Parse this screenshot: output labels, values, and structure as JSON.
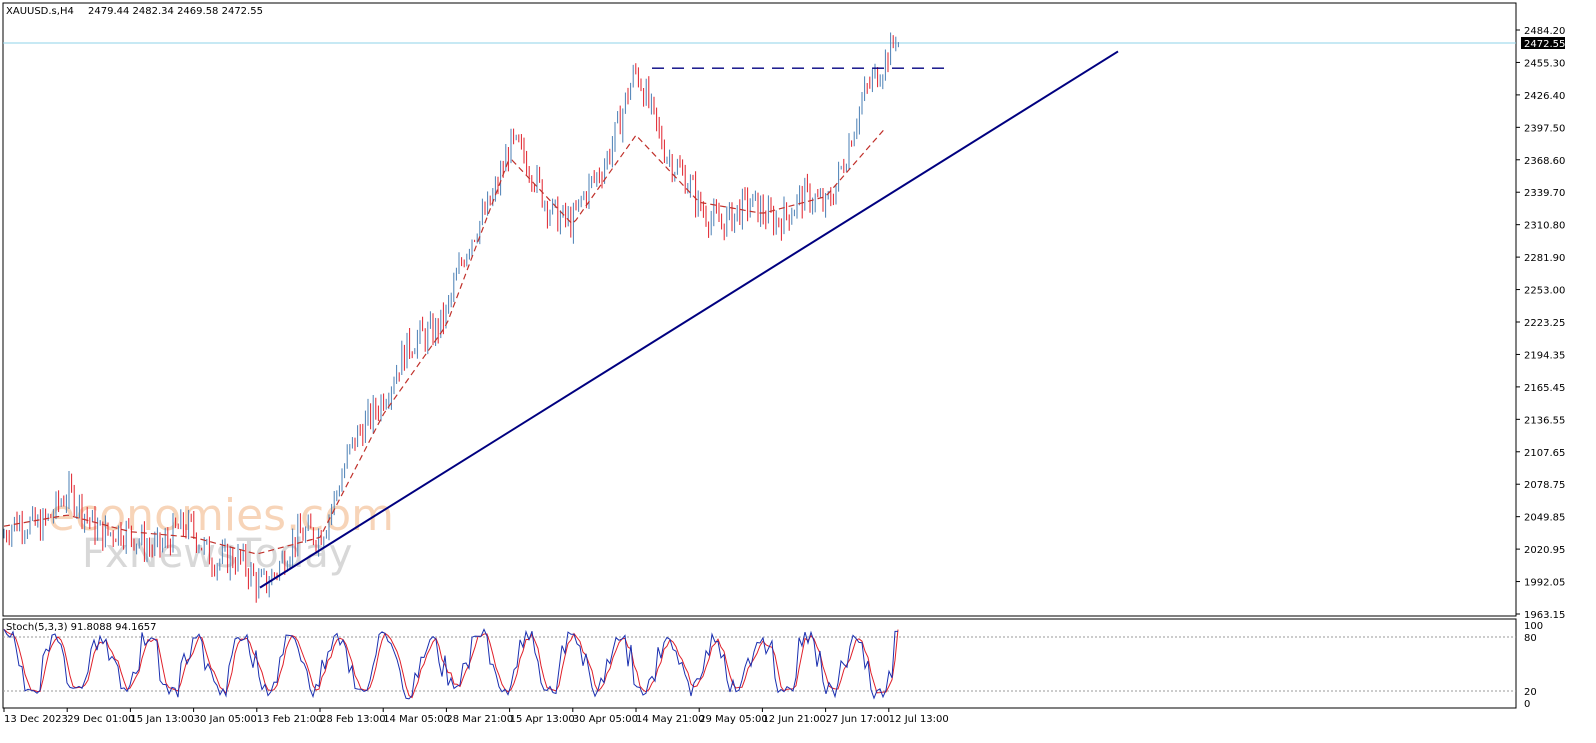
{
  "header": {
    "symbol": "XAUUSD.s,H4",
    "ohlc": "2479.44 2482.34 2469.58 2472.55"
  },
  "price_axis": {
    "ticks": [
      "2484.20",
      "2455.30",
      "2426.40",
      "2397.50",
      "2368.60",
      "2339.70",
      "2310.80",
      "2281.90",
      "2253.00",
      "2223.25",
      "2194.35",
      "2165.45",
      "2136.55",
      "2107.65",
      "2078.75",
      "2049.85",
      "2020.95",
      "1992.05",
      "1963.15"
    ],
    "current_price_label": "2472.55"
  },
  "osc": {
    "label": "Stoch(5,3,3) 91.8088 94.1657",
    "ticks": [
      "100",
      "80",
      "20",
      "0"
    ]
  },
  "time_axis": {
    "ticks": [
      "13 Dec 2023",
      "29 Dec 01:00",
      "15 Jan 13:00",
      "30 Jan 05:00",
      "13 Feb 21:00",
      "28 Feb 13:00",
      "14 Mar 05:00",
      "28 Mar 21:00",
      "15 Apr 13:00",
      "30 Apr 05:00",
      "14 May 21:00",
      "29 May 05:00",
      "12 Jun 21:00",
      "27 Jun 17:00",
      "12 Jul 13:00"
    ]
  },
  "watermark": {
    "line1": "economies.com",
    "line2": "FxNewsToday"
  },
  "colors": {
    "bull": "#4a7fb5",
    "bear": "#e0202a",
    "ma": "#c0302a",
    "trend": "#000080",
    "price_line": "#8fd3e8",
    "stoch_main": "#1a2fb0",
    "stoch_signal": "#e0202a"
  },
  "chart_data": {
    "type": "line",
    "title": "XAUUSD.s,H4",
    "x": [
      "13 Dec 2023",
      "29 Dec 01:00",
      "15 Jan 13:00",
      "30 Jan 05:00",
      "13 Feb 21:00",
      "28 Feb 13:00",
      "14 Mar 05:00",
      "28 Mar 21:00",
      "15 Apr 13:00",
      "30 Apr 05:00",
      "14 May 21:00",
      "29 May 05:00",
      "12 Jun 21:00",
      "27 Jun 17:00",
      "12 Jul 13:00"
    ],
    "series": [
      {
        "values": [
          2030,
          2062,
          2025,
          2032,
          1990,
          2040,
          2165,
          2235,
          2380,
          2305,
          2440,
          2320,
          2320,
          2330,
          2472.55
        ]
      },
      {
        "values": [
          2040,
          2050,
          2035,
          2030,
          2015,
          2030,
          2140,
          2220,
          2370,
          2310,
          2390,
          2330,
          2320,
          2335,
          2400
        ]
      }
    ],
    "ohlc_last": {
      "open": 2479.44,
      "high": 2482.34,
      "low": 2469.58,
      "close": 2472.55
    },
    "trendline": {
      "from": {
        "x": "13 Feb 21:00",
        "y": 1985
      },
      "to": {
        "x": "after 12 Jul 13:00",
        "y": 2465
      }
    },
    "resistance": {
      "y": 2450,
      "from_x": "14 May 21:00"
    },
    "ylim": [
      1963.15,
      2484.2
    ],
    "stochastic": {
      "k": 91.8088,
      "d": 94.1657,
      "levels": [
        20,
        80
      ],
      "ylim": [
        0,
        100
      ]
    },
    "grid": false
  }
}
